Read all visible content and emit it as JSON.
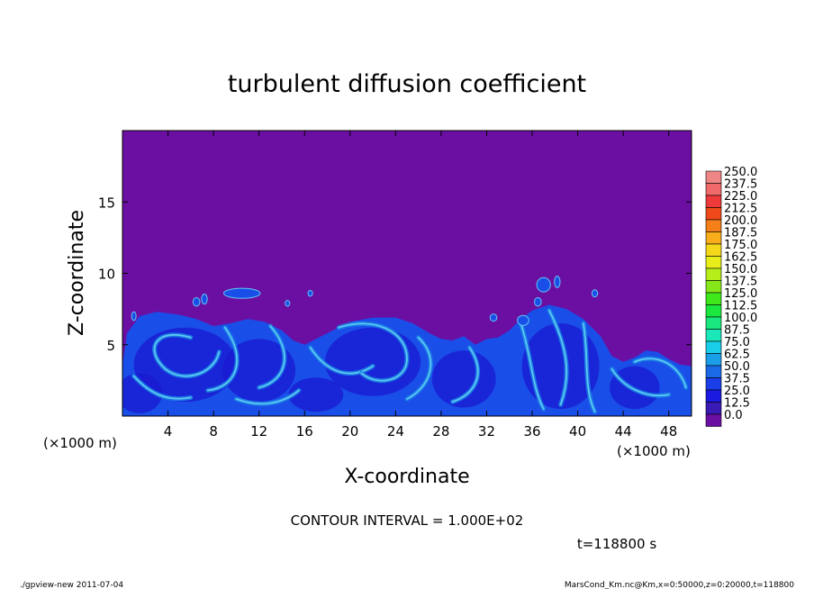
{
  "chart_data": {
    "type": "heatmap",
    "title": "turbulent diffusion coefficient",
    "xlabel": "X-coordinate",
    "ylabel": "Z-coordinate",
    "x_unit_left": "(×1000 m)",
    "x_unit_right": "(×1000 m)",
    "xlim": [
      0,
      50
    ],
    "ylim": [
      0,
      20
    ],
    "x_ticks": [
      "4",
      "8",
      "12",
      "16",
      "20",
      "24",
      "28",
      "32",
      "36",
      "40",
      "44",
      "48"
    ],
    "x_tick_values": [
      4,
      8,
      12,
      16,
      20,
      24,
      28,
      32,
      36,
      40,
      44,
      48
    ],
    "y_ticks": [
      "5",
      "10",
      "15"
    ],
    "y_tick_values": [
      5,
      10,
      15
    ],
    "colorbar": {
      "levels": [
        "250.0",
        "237.5",
        "225.0",
        "212.5",
        "200.0",
        "187.5",
        "175.0",
        "162.5",
        "150.0",
        "137.5",
        "125.0",
        "112.5",
        "100.0",
        "87.5",
        "75.0",
        "62.5",
        "50.0",
        "37.5",
        "25.0",
        "12.5",
        "0.0"
      ],
      "colors": [
        "#ef8686",
        "#f06a6a",
        "#ee3a3a",
        "#f04a1a",
        "#f5801a",
        "#f7ae1a",
        "#f5d81a",
        "#e7ee1a",
        "#b6ee1a",
        "#86e81a",
        "#3ee81a",
        "#1ae83e",
        "#1ae87e",
        "#1ae8b8",
        "#1acde8",
        "#1a9ee8",
        "#1a6ae8",
        "#1a3ee8",
        "#1a1ae0",
        "#3a1ab5",
        "#6b0fa3"
      ]
    },
    "background_value_color": "#6b0fa3",
    "layer_colors": {
      "deep": "#1a1ad2",
      "mid": "#1a4ee8",
      "light": "#1a86e8",
      "highlight": "#5fc8f0"
    },
    "contour_interval_text": "CONTOUR INTERVAL = 1.000E+02",
    "time_label": "t=118800  s"
  },
  "footer": {
    "left": "./gpview-new   2011-07-04",
    "right": "MarsCond_Km.nc@Km,x=0:50000,z=0:20000,t=118800"
  }
}
